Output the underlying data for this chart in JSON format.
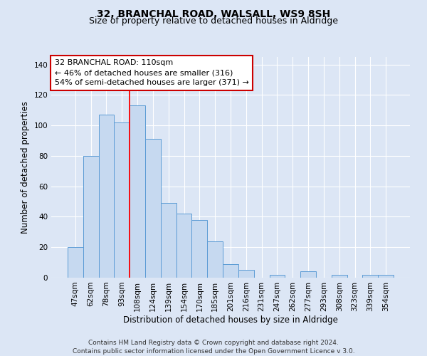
{
  "title": "32, BRANCHAL ROAD, WALSALL, WS9 8SH",
  "subtitle": "Size of property relative to detached houses in Aldridge",
  "xlabel": "Distribution of detached houses by size in Aldridge",
  "ylabel": "Number of detached properties",
  "bar_labels": [
    "47sqm",
    "62sqm",
    "78sqm",
    "93sqm",
    "108sqm",
    "124sqm",
    "139sqm",
    "154sqm",
    "170sqm",
    "185sqm",
    "201sqm",
    "216sqm",
    "231sqm",
    "247sqm",
    "262sqm",
    "277sqm",
    "293sqm",
    "308sqm",
    "323sqm",
    "339sqm",
    "354sqm"
  ],
  "bar_heights": [
    20,
    80,
    107,
    102,
    113,
    91,
    49,
    42,
    38,
    24,
    9,
    5,
    0,
    2,
    0,
    4,
    0,
    2,
    0,
    2,
    2
  ],
  "bar_color": "#c6d9f0",
  "bar_edge_color": "#5b9bd5",
  "red_line_index": 4,
  "annotation_title": "32 BRANCHAL ROAD: 110sqm",
  "annotation_line1": "← 46% of detached houses are smaller (316)",
  "annotation_line2": "54% of semi-detached houses are larger (371) →",
  "annotation_box_color": "#ffffff",
  "annotation_box_edge_color": "#cc0000",
  "ylim": [
    0,
    145
  ],
  "yticks": [
    0,
    20,
    40,
    60,
    80,
    100,
    120,
    140
  ],
  "footer1": "Contains HM Land Registry data © Crown copyright and database right 2024.",
  "footer2": "Contains public sector information licensed under the Open Government Licence v 3.0.",
  "background_color": "#dce6f5",
  "plot_background_color": "#dce6f5",
  "grid_color": "#ffffff",
  "title_fontsize": 10,
  "subtitle_fontsize": 9,
  "axis_label_fontsize": 8.5,
  "tick_fontsize": 7.5,
  "annotation_fontsize": 8,
  "footer_fontsize": 6.5
}
